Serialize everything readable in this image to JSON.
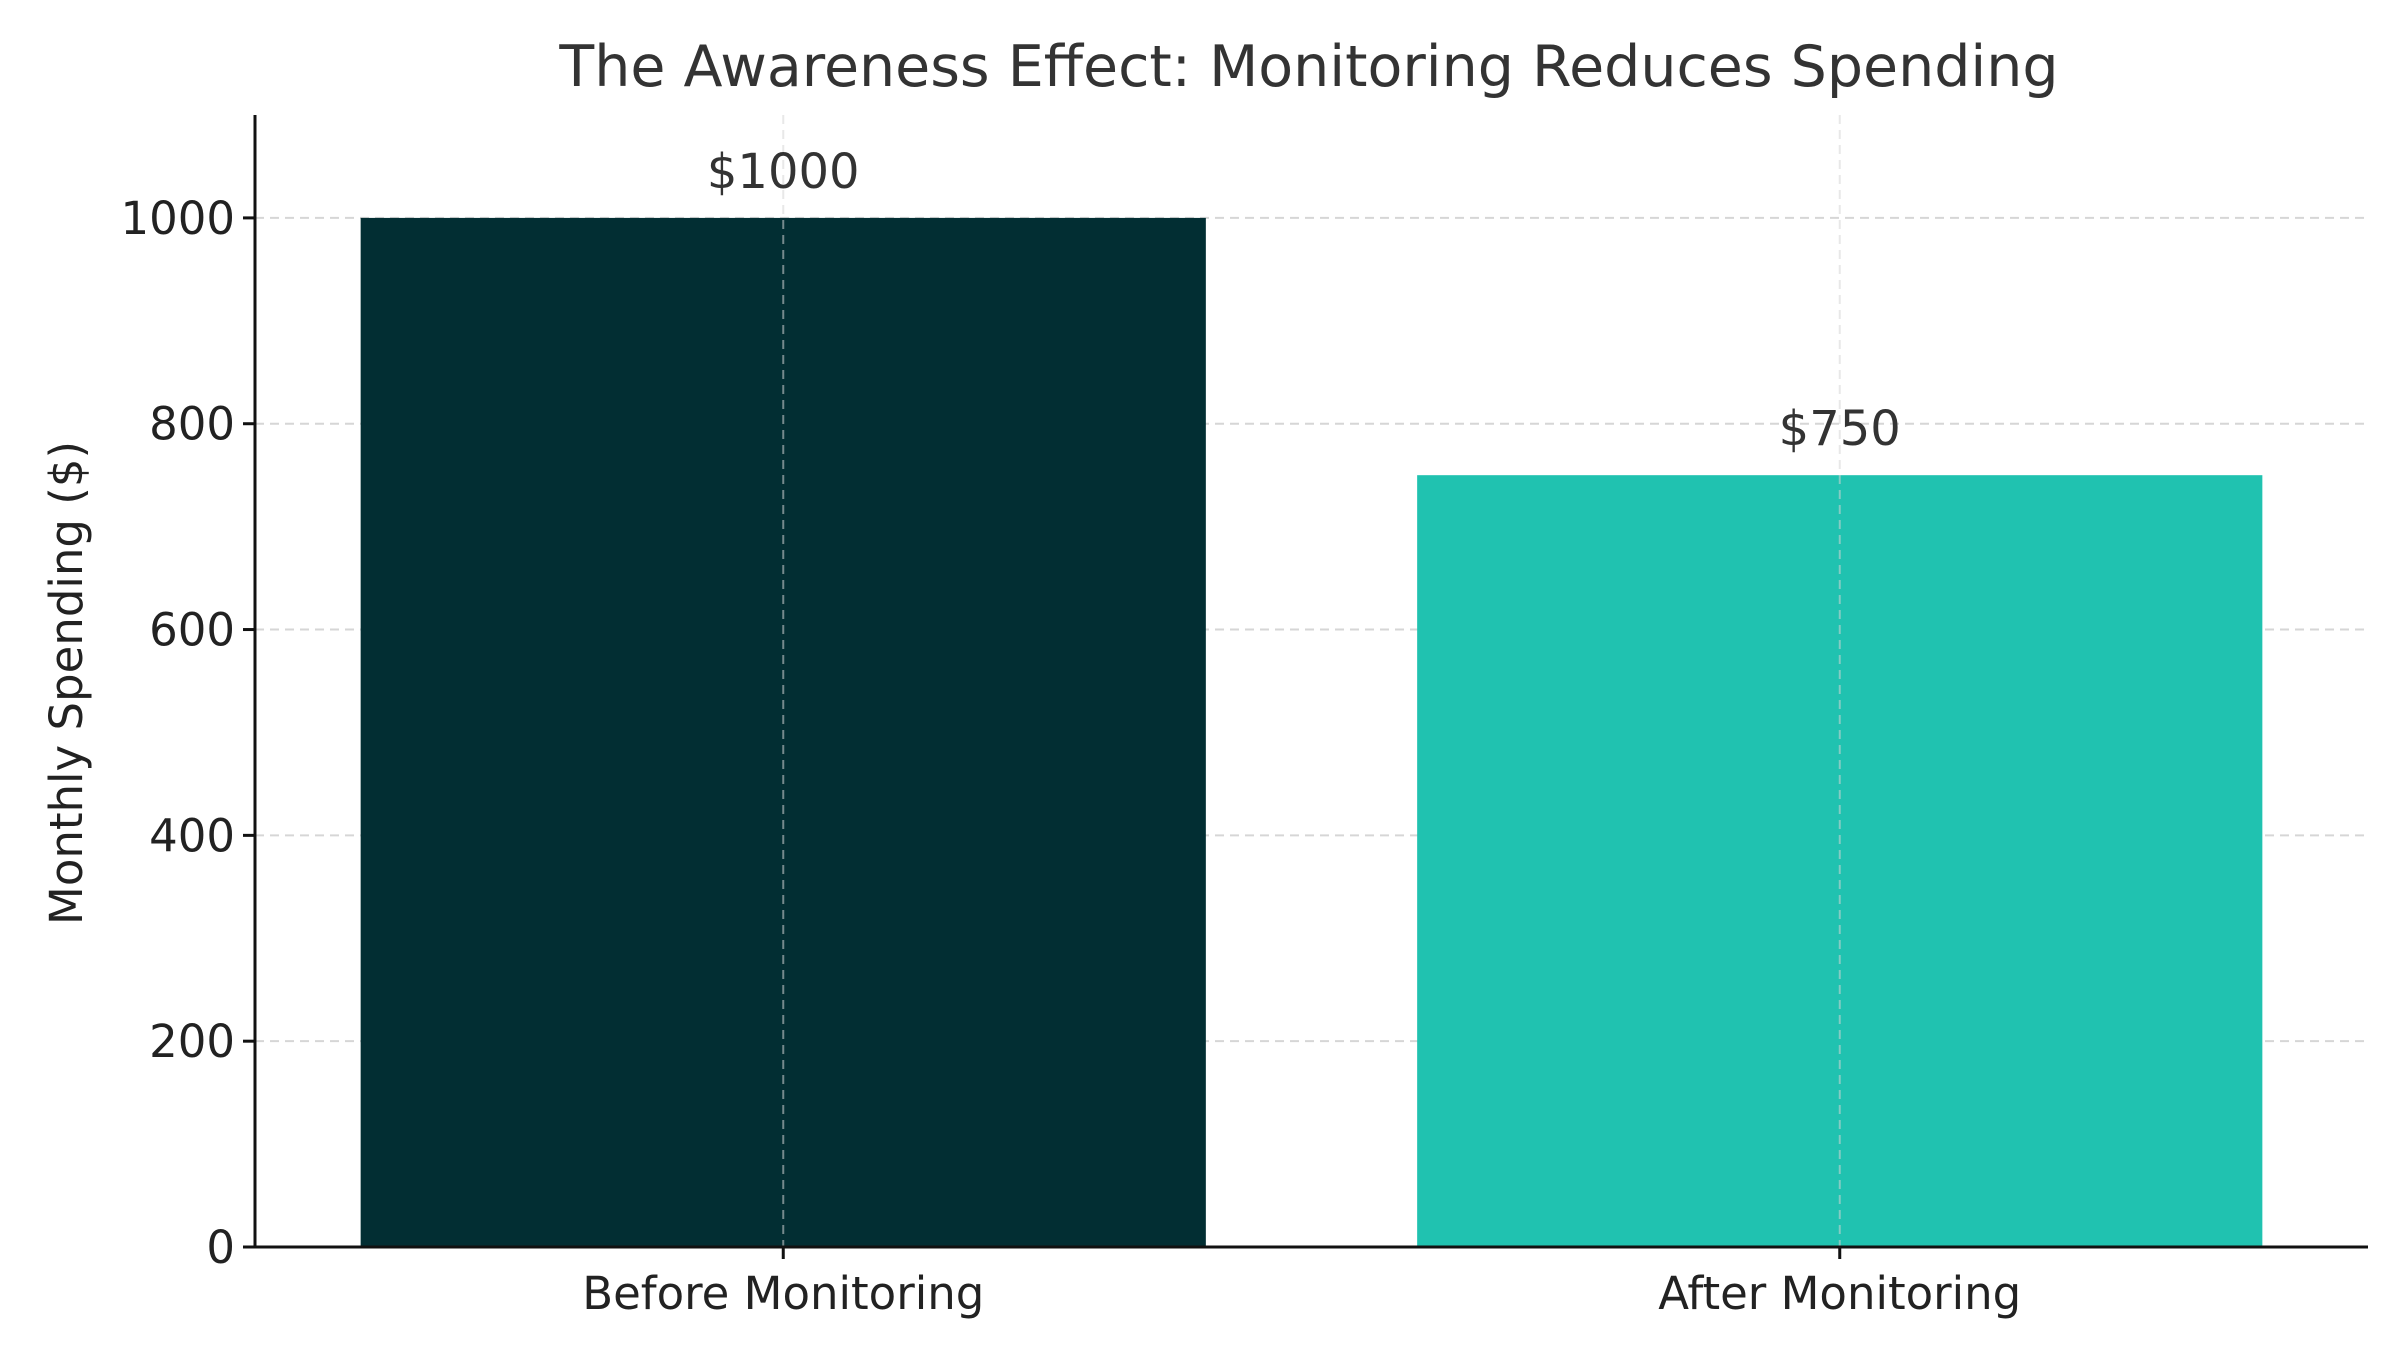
{
  "chart_data": {
    "type": "bar",
    "title": "The Awareness Effect: Monitoring Reduces Spending",
    "xlabel": "",
    "ylabel": "Monthly Spending ($)",
    "categories": [
      "Before Monitoring",
      "After Monitoring"
    ],
    "values": [
      1000,
      750
    ],
    "data_labels": [
      "$1000",
      "$750"
    ],
    "colors": [
      "#022E33",
      "#20C2B0"
    ],
    "ylim": [
      0,
      1100
    ],
    "yticks": [
      0,
      200,
      400,
      600,
      800,
      1000
    ],
    "ytick_labels": [
      "0",
      "200",
      "400",
      "600",
      "800",
      "1000"
    ],
    "grid": true,
    "legend": "none"
  }
}
